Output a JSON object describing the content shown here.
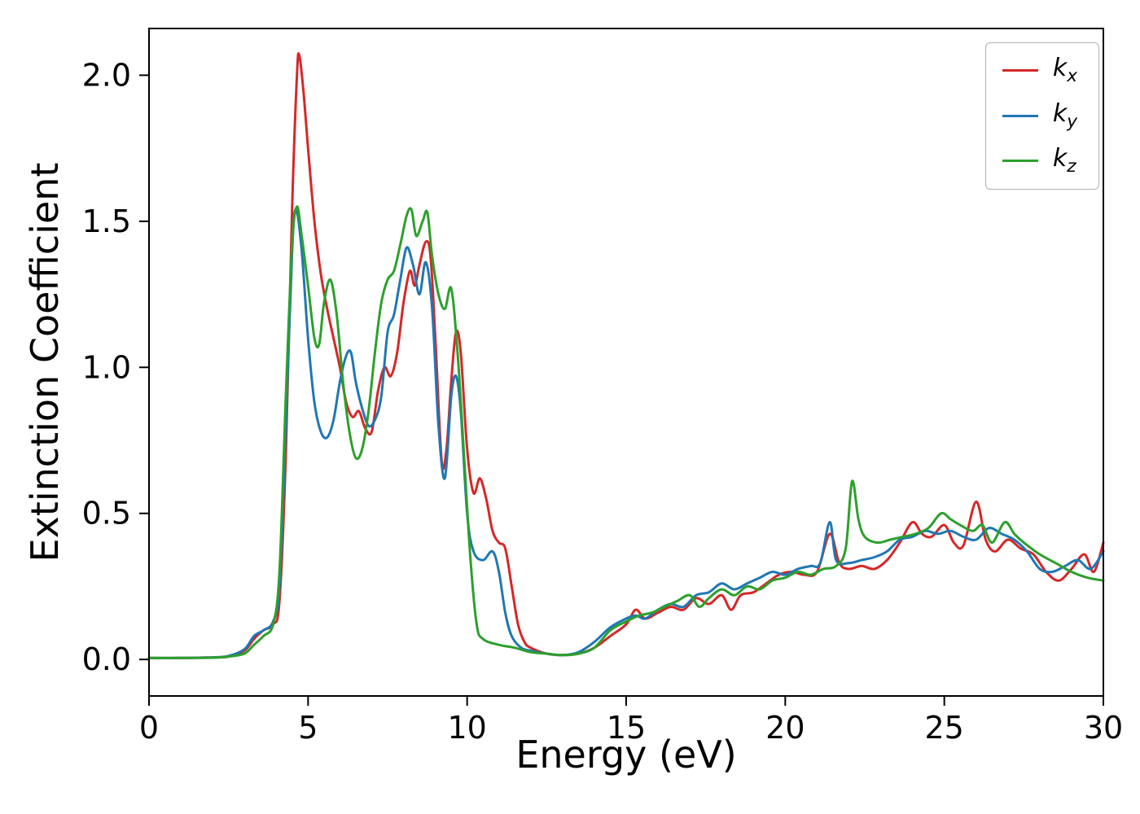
{
  "chart_data": {
    "type": "line",
    "title": "",
    "xlabel": "Energy (eV)",
    "ylabel": "Extinction Coefficient",
    "xlim": [
      0,
      30
    ],
    "ylim": [
      -0.125,
      2.16
    ],
    "grid": false,
    "legend_position": "upper right",
    "xticks": [
      {
        "v": 0,
        "label": "0"
      },
      {
        "v": 5,
        "label": "5"
      },
      {
        "v": 10,
        "label": "10"
      },
      {
        "v": 15,
        "label": "15"
      },
      {
        "v": 20,
        "label": "20"
      },
      {
        "v": 25,
        "label": "25"
      },
      {
        "v": 30,
        "label": "30"
      }
    ],
    "yticks": [
      {
        "v": 0.0,
        "label": "0.0"
      },
      {
        "v": 0.5,
        "label": "0.5"
      },
      {
        "v": 1.0,
        "label": "1.0"
      },
      {
        "v": 1.5,
        "label": "1.5"
      },
      {
        "v": 2.0,
        "label": "2.0"
      }
    ],
    "legend": {
      "items": [
        {
          "name": "k_x",
          "base": "k",
          "sub": "x"
        },
        {
          "name": "k_y",
          "base": "k",
          "sub": "y"
        },
        {
          "name": "k_z",
          "base": "k",
          "sub": "z"
        }
      ]
    },
    "series": [
      {
        "name": "k_x",
        "color": "#d62728",
        "points": [
          [
            0,
            0.005
          ],
          [
            1,
            0.005
          ],
          [
            2,
            0.007
          ],
          [
            2.5,
            0.01
          ],
          [
            3,
            0.03
          ],
          [
            3.3,
            0.07
          ],
          [
            3.6,
            0.1
          ],
          [
            3.9,
            0.12
          ],
          [
            4.1,
            0.2
          ],
          [
            4.3,
            0.7
          ],
          [
            4.5,
            1.55
          ],
          [
            4.65,
            2.0
          ],
          [
            4.72,
            2.07
          ],
          [
            4.85,
            1.95
          ],
          [
            5,
            1.75
          ],
          [
            5.2,
            1.5
          ],
          [
            5.4,
            1.32
          ],
          [
            5.6,
            1.2
          ],
          [
            5.8,
            1.1
          ],
          [
            6,
            1.0
          ],
          [
            6.2,
            0.88
          ],
          [
            6.4,
            0.83
          ],
          [
            6.6,
            0.85
          ],
          [
            6.8,
            0.79
          ],
          [
            7,
            0.78
          ],
          [
            7.2,
            0.92
          ],
          [
            7.4,
            1.0
          ],
          [
            7.6,
            0.97
          ],
          [
            7.8,
            1.05
          ],
          [
            8,
            1.22
          ],
          [
            8.2,
            1.33
          ],
          [
            8.35,
            1.28
          ],
          [
            8.5,
            1.35
          ],
          [
            8.7,
            1.43
          ],
          [
            8.85,
            1.38
          ],
          [
            9,
            1.1
          ],
          [
            9.2,
            0.68
          ],
          [
            9.35,
            0.72
          ],
          [
            9.5,
            0.95
          ],
          [
            9.65,
            1.12
          ],
          [
            9.8,
            1.05
          ],
          [
            10,
            0.72
          ],
          [
            10.2,
            0.57
          ],
          [
            10.4,
            0.62
          ],
          [
            10.6,
            0.55
          ],
          [
            10.8,
            0.44
          ],
          [
            11,
            0.4
          ],
          [
            11.2,
            0.38
          ],
          [
            11.4,
            0.25
          ],
          [
            11.6,
            0.12
          ],
          [
            11.8,
            0.06
          ],
          [
            12,
            0.04
          ],
          [
            12.5,
            0.02
          ],
          [
            13,
            0.015
          ],
          [
            13.5,
            0.02
          ],
          [
            14,
            0.04
          ],
          [
            14.5,
            0.08
          ],
          [
            15,
            0.12
          ],
          [
            15.3,
            0.17
          ],
          [
            15.6,
            0.14
          ],
          [
            16,
            0.16
          ],
          [
            16.4,
            0.18
          ],
          [
            16.8,
            0.17
          ],
          [
            17.2,
            0.21
          ],
          [
            17.6,
            0.19
          ],
          [
            18,
            0.22
          ],
          [
            18.3,
            0.17
          ],
          [
            18.6,
            0.22
          ],
          [
            19,
            0.23
          ],
          [
            19.4,
            0.26
          ],
          [
            19.8,
            0.29
          ],
          [
            20.2,
            0.3
          ],
          [
            20.6,
            0.29
          ],
          [
            21,
            0.3
          ],
          [
            21.4,
            0.43
          ],
          [
            21.7,
            0.33
          ],
          [
            22,
            0.31
          ],
          [
            22.4,
            0.32
          ],
          [
            22.8,
            0.31
          ],
          [
            23.2,
            0.34
          ],
          [
            23.6,
            0.4
          ],
          [
            24,
            0.47
          ],
          [
            24.3,
            0.43
          ],
          [
            24.6,
            0.42
          ],
          [
            25,
            0.46
          ],
          [
            25.3,
            0.4
          ],
          [
            25.6,
            0.39
          ],
          [
            26,
            0.54
          ],
          [
            26.3,
            0.41
          ],
          [
            26.6,
            0.37
          ],
          [
            27,
            0.41
          ],
          [
            27.4,
            0.38
          ],
          [
            27.8,
            0.36
          ],
          [
            28.2,
            0.3
          ],
          [
            28.6,
            0.27
          ],
          [
            29,
            0.31
          ],
          [
            29.4,
            0.36
          ],
          [
            29.7,
            0.3
          ],
          [
            30,
            0.4
          ]
        ]
      },
      {
        "name": "k_y",
        "color": "#1f77b4",
        "points": [
          [
            0,
            0.005
          ],
          [
            1,
            0.005
          ],
          [
            2,
            0.007
          ],
          [
            2.5,
            0.012
          ],
          [
            3,
            0.035
          ],
          [
            3.3,
            0.08
          ],
          [
            3.6,
            0.1
          ],
          [
            3.9,
            0.13
          ],
          [
            4.1,
            0.25
          ],
          [
            4.3,
            0.8
          ],
          [
            4.5,
            1.4
          ],
          [
            4.62,
            1.54
          ],
          [
            4.8,
            1.4
          ],
          [
            5,
            1.1
          ],
          [
            5.2,
            0.88
          ],
          [
            5.4,
            0.78
          ],
          [
            5.6,
            0.76
          ],
          [
            5.8,
            0.82
          ],
          [
            6,
            0.95
          ],
          [
            6.2,
            1.04
          ],
          [
            6.35,
            1.05
          ],
          [
            6.5,
            0.95
          ],
          [
            6.7,
            0.86
          ],
          [
            6.9,
            0.8
          ],
          [
            7.1,
            0.82
          ],
          [
            7.3,
            0.9
          ],
          [
            7.5,
            1.12
          ],
          [
            7.7,
            1.18
          ],
          [
            7.9,
            1.3
          ],
          [
            8.1,
            1.41
          ],
          [
            8.3,
            1.35
          ],
          [
            8.5,
            1.25
          ],
          [
            8.7,
            1.36
          ],
          [
            8.9,
            1.2
          ],
          [
            9.1,
            0.8
          ],
          [
            9.3,
            0.62
          ],
          [
            9.5,
            0.9
          ],
          [
            9.65,
            0.97
          ],
          [
            9.8,
            0.85
          ],
          [
            10,
            0.5
          ],
          [
            10.2,
            0.37
          ],
          [
            10.5,
            0.34
          ],
          [
            10.8,
            0.37
          ],
          [
            11,
            0.3
          ],
          [
            11.2,
            0.16
          ],
          [
            11.4,
            0.08
          ],
          [
            11.7,
            0.04
          ],
          [
            12,
            0.03
          ],
          [
            12.5,
            0.02
          ],
          [
            13,
            0.015
          ],
          [
            13.5,
            0.025
          ],
          [
            14,
            0.06
          ],
          [
            14.5,
            0.11
          ],
          [
            15,
            0.14
          ],
          [
            15.3,
            0.15
          ],
          [
            15.6,
            0.14
          ],
          [
            16,
            0.17
          ],
          [
            16.4,
            0.19
          ],
          [
            16.8,
            0.18
          ],
          [
            17.2,
            0.22
          ],
          [
            17.6,
            0.23
          ],
          [
            18,
            0.26
          ],
          [
            18.4,
            0.24
          ],
          [
            18.8,
            0.26
          ],
          [
            19.2,
            0.28
          ],
          [
            19.6,
            0.3
          ],
          [
            20,
            0.29
          ],
          [
            20.4,
            0.31
          ],
          [
            20.8,
            0.32
          ],
          [
            21.1,
            0.33
          ],
          [
            21.4,
            0.47
          ],
          [
            21.6,
            0.34
          ],
          [
            22,
            0.33
          ],
          [
            22.4,
            0.34
          ],
          [
            22.8,
            0.35
          ],
          [
            23.2,
            0.37
          ],
          [
            23.6,
            0.41
          ],
          [
            24,
            0.42
          ],
          [
            24.4,
            0.44
          ],
          [
            24.8,
            0.43
          ],
          [
            25.2,
            0.44
          ],
          [
            25.6,
            0.42
          ],
          [
            26,
            0.41
          ],
          [
            26.4,
            0.45
          ],
          [
            26.8,
            0.43
          ],
          [
            27.2,
            0.41
          ],
          [
            27.6,
            0.37
          ],
          [
            28,
            0.31
          ],
          [
            28.4,
            0.3
          ],
          [
            28.8,
            0.32
          ],
          [
            29.2,
            0.34
          ],
          [
            29.6,
            0.31
          ],
          [
            30,
            0.37
          ]
        ]
      },
      {
        "name": "k_z",
        "color": "#2ca02c",
        "points": [
          [
            0,
            0.005
          ],
          [
            1,
            0.005
          ],
          [
            2,
            0.006
          ],
          [
            2.5,
            0.01
          ],
          [
            3,
            0.02
          ],
          [
            3.3,
            0.05
          ],
          [
            3.6,
            0.08
          ],
          [
            3.9,
            0.12
          ],
          [
            4.1,
            0.3
          ],
          [
            4.3,
            0.9
          ],
          [
            4.5,
            1.42
          ],
          [
            4.65,
            1.55
          ],
          [
            4.8,
            1.45
          ],
          [
            5,
            1.28
          ],
          [
            5.2,
            1.1
          ],
          [
            5.35,
            1.08
          ],
          [
            5.5,
            1.22
          ],
          [
            5.7,
            1.3
          ],
          [
            5.9,
            1.18
          ],
          [
            6.1,
            0.95
          ],
          [
            6.3,
            0.78
          ],
          [
            6.5,
            0.69
          ],
          [
            6.7,
            0.72
          ],
          [
            6.9,
            0.85
          ],
          [
            7.1,
            1.05
          ],
          [
            7.3,
            1.22
          ],
          [
            7.5,
            1.3
          ],
          [
            7.7,
            1.33
          ],
          [
            7.9,
            1.42
          ],
          [
            8.1,
            1.52
          ],
          [
            8.25,
            1.54
          ],
          [
            8.4,
            1.45
          ],
          [
            8.6,
            1.5
          ],
          [
            8.75,
            1.53
          ],
          [
            8.9,
            1.38
          ],
          [
            9.1,
            1.25
          ],
          [
            9.3,
            1.2
          ],
          [
            9.5,
            1.27
          ],
          [
            9.7,
            1.05
          ],
          [
            9.9,
            0.7
          ],
          [
            10.1,
            0.35
          ],
          [
            10.3,
            0.12
          ],
          [
            10.5,
            0.07
          ],
          [
            11,
            0.05
          ],
          [
            11.5,
            0.04
          ],
          [
            12,
            0.025
          ],
          [
            12.5,
            0.02
          ],
          [
            13,
            0.015
          ],
          [
            13.5,
            0.02
          ],
          [
            14,
            0.04
          ],
          [
            14.5,
            0.1
          ],
          [
            15,
            0.13
          ],
          [
            15.4,
            0.15
          ],
          [
            15.8,
            0.16
          ],
          [
            16.2,
            0.18
          ],
          [
            16.6,
            0.2
          ],
          [
            17,
            0.22
          ],
          [
            17.3,
            0.18
          ],
          [
            17.6,
            0.21
          ],
          [
            18,
            0.24
          ],
          [
            18.4,
            0.22
          ],
          [
            18.8,
            0.25
          ],
          [
            19.2,
            0.24
          ],
          [
            19.6,
            0.27
          ],
          [
            20,
            0.28
          ],
          [
            20.4,
            0.3
          ],
          [
            20.8,
            0.29
          ],
          [
            21.2,
            0.31
          ],
          [
            21.6,
            0.32
          ],
          [
            21.9,
            0.38
          ],
          [
            22.1,
            0.61
          ],
          [
            22.3,
            0.48
          ],
          [
            22.5,
            0.42
          ],
          [
            22.9,
            0.4
          ],
          [
            23.3,
            0.41
          ],
          [
            23.7,
            0.42
          ],
          [
            24.1,
            0.43
          ],
          [
            24.5,
            0.45
          ],
          [
            24.9,
            0.5
          ],
          [
            25.2,
            0.48
          ],
          [
            25.5,
            0.46
          ],
          [
            25.9,
            0.44
          ],
          [
            26.2,
            0.46
          ],
          [
            26.5,
            0.4
          ],
          [
            26.9,
            0.47
          ],
          [
            27.2,
            0.43
          ],
          [
            27.5,
            0.4
          ],
          [
            28,
            0.36
          ],
          [
            28.5,
            0.33
          ],
          [
            29,
            0.3
          ],
          [
            29.5,
            0.28
          ],
          [
            30,
            0.27
          ]
        ]
      }
    ]
  }
}
